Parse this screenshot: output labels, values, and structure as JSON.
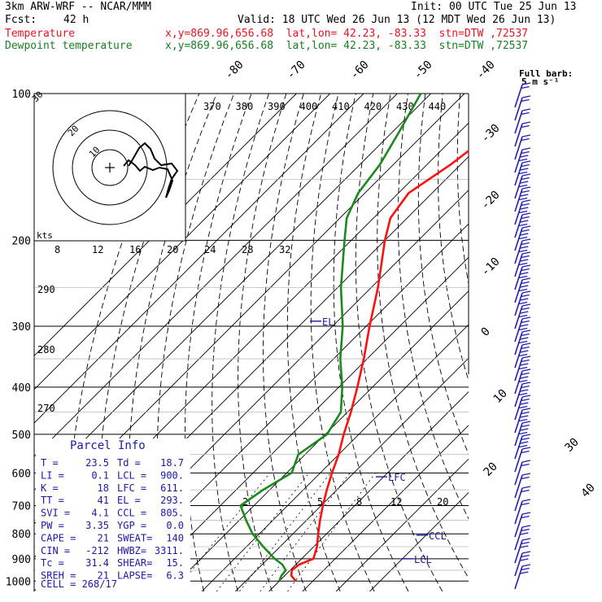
{
  "header": {
    "model": "3km ARW-WRF -- NCAR/MMM",
    "init": "Init: 00 UTC Tue 25 Jun 13",
    "fcst_label": "Fcst:",
    "fcst_value": "42 h",
    "valid": "Valid: 18 UTC Wed 26 Jun 13 (12 MDT Wed 26 Jun 13)",
    "lines": [
      {
        "label": "Temperature",
        "loc": "x,y=869.96,656.68  lat,lon= 42.23, -83.33  stn=DTW ,72537",
        "color": "#e8141e"
      },
      {
        "label": "Dewpoint temperature",
        "loc": "x,y=869.96,656.68  lat,lon= 42.23, -83.33  stn=DTW ,72537",
        "color": "#18801e"
      }
    ]
  },
  "colors": {
    "temperature": "#ff1010",
    "dewpoint": "#1a8a1a",
    "parcel_text": "#1a1aa6",
    "barbs": "#2020b0"
  },
  "chart_data": {
    "type": "line",
    "subtype": "skew-T log-P sounding",
    "pressure_levels": [
      100,
      200,
      300,
      400,
      500,
      600,
      700,
      800,
      900,
      1000
    ],
    "isotherm_labels": [
      "-80",
      "-70",
      "-60",
      "-50",
      "-40",
      "-30",
      "-20",
      "-10",
      "0",
      "10",
      "20",
      "30",
      "40"
    ],
    "theta_labels": [
      "370",
      "380",
      "390",
      "400",
      "410",
      "420",
      "430",
      "440"
    ],
    "theta_side_labels": [
      "290",
      "280",
      "270"
    ],
    "mixing_ratio_labels": [
      "2",
      "5",
      "8",
      "12",
      "20"
    ],
    "knots_label": "kts",
    "hodograph_speed_labels": [
      "8",
      "12",
      "16",
      "20",
      "24",
      "28",
      "32"
    ],
    "hodograph_ring_labels": [
      "30",
      "20",
      "10"
    ],
    "barb_legend": {
      "line1": "Full barb:",
      "line2": "5 m s⁻¹"
    },
    "levels_marked": [
      {
        "label": "EL",
        "p": 293
      },
      {
        "label": "LFC",
        "p": 611
      },
      {
        "label": "CCL",
        "p": 805
      },
      {
        "label": "LCL",
        "p": 900
      }
    ],
    "series": [
      {
        "name": "Temperature",
        "points": [
          [
            1000,
            25
          ],
          [
            975,
            22
          ],
          [
            950,
            20.5
          ],
          [
            925,
            21
          ],
          [
            900,
            23.5
          ],
          [
            850,
            21
          ],
          [
            800,
            17.5
          ],
          [
            750,
            14
          ],
          [
            700,
            10.5
          ],
          [
            650,
            7
          ],
          [
            600,
            3.5
          ],
          [
            550,
            0
          ],
          [
            500,
            -4.5
          ],
          [
            450,
            -9
          ],
          [
            400,
            -14.5
          ],
          [
            350,
            -21
          ],
          [
            300,
            -29
          ],
          [
            250,
            -38
          ],
          [
            200,
            -50
          ],
          [
            180,
            -55
          ],
          [
            160,
            -57
          ],
          [
            140,
            -53
          ],
          [
            120,
            -50
          ],
          [
            100,
            -45
          ]
        ]
      },
      {
        "name": "Dewpoint temperature",
        "points": [
          [
            1000,
            20
          ],
          [
            975,
            19
          ],
          [
            950,
            18.7
          ],
          [
            925,
            16
          ],
          [
            900,
            12
          ],
          [
            850,
            5
          ],
          [
            800,
            -2
          ],
          [
            750,
            -8
          ],
          [
            700,
            -14
          ],
          [
            650,
            -12
          ],
          [
            600,
            -8.5
          ],
          [
            550,
            -12
          ],
          [
            500,
            -9.5
          ],
          [
            450,
            -12
          ],
          [
            400,
            -19
          ],
          [
            350,
            -28
          ],
          [
            300,
            -37
          ],
          [
            250,
            -49
          ],
          [
            200,
            -62
          ],
          [
            180,
            -68
          ],
          [
            160,
            -72
          ],
          [
            140,
            -74
          ],
          [
            120,
            -78
          ],
          [
            100,
            -83
          ]
        ]
      }
    ]
  },
  "parcel": {
    "title": "Parcel Info",
    "rows": [
      [
        "T    =",
        "23.5",
        "Td   =",
        "18.7"
      ],
      [
        "LI   =",
        "0.1",
        "LCL  =",
        "900."
      ],
      [
        "K    =",
        "18",
        "LFC  =",
        "611."
      ],
      [
        "TT   =",
        "41",
        "EL   =",
        "293."
      ],
      [
        "SVI  =",
        "4.1",
        "CCL  =",
        "805."
      ],
      [
        "PW   =",
        "3.35",
        "YGP  =",
        "0.0"
      ],
      [
        "CAPE =",
        "21",
        "SWEAT=",
        "140"
      ],
      [
        "CIN  =",
        "-212",
        "HWBZ=",
        "3311."
      ],
      [
        "Tc   =",
        "31.4",
        "SHEAR=",
        "15."
      ],
      [
        "SREH =",
        "21",
        "LAPSE=",
        "6.3"
      ]
    ],
    "cell": "CELL = 268/17"
  }
}
